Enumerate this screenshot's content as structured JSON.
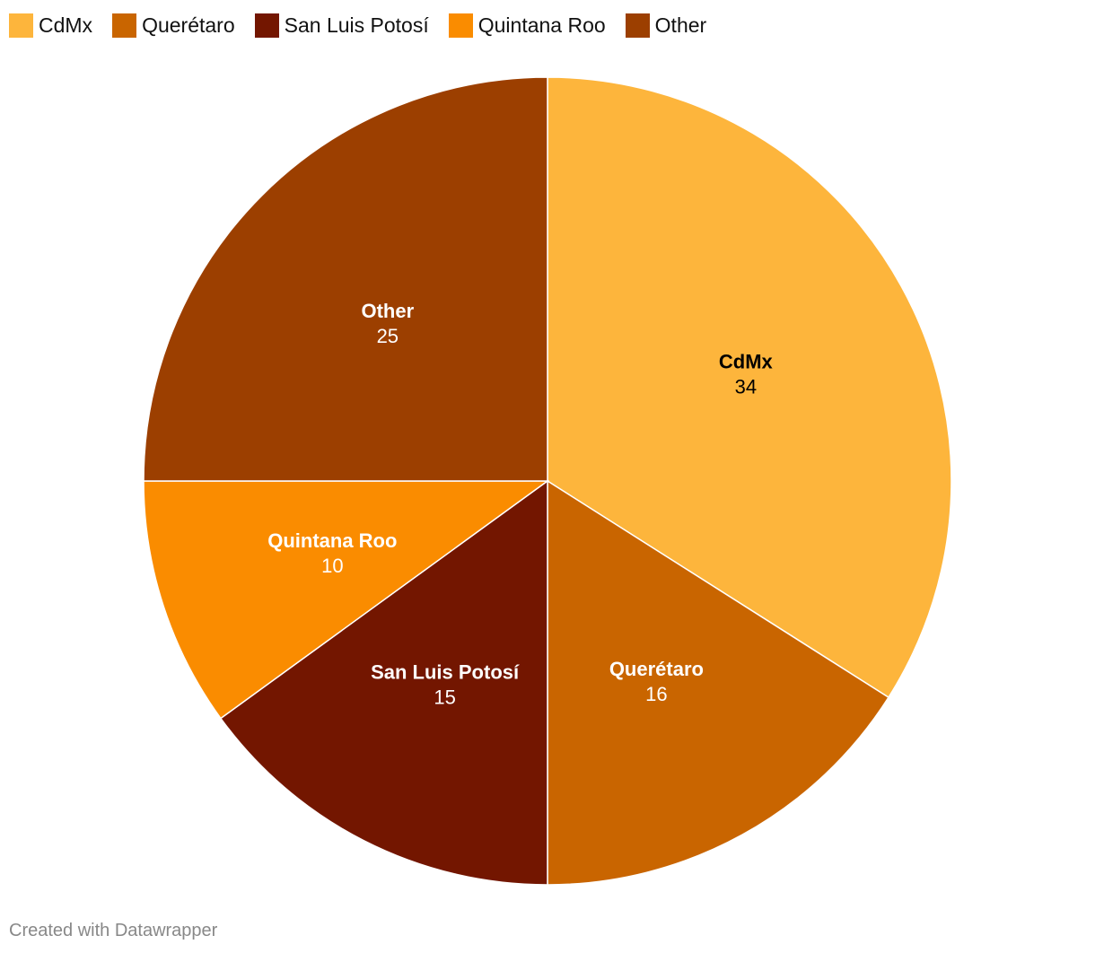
{
  "chart_data": {
    "type": "pie",
    "categories": [
      "CdMx",
      "Querétaro",
      "San Luis Potosí",
      "Quintana Roo",
      "Other"
    ],
    "values": [
      34,
      16,
      15,
      10,
      25
    ],
    "colors": [
      "#fdb53c",
      "#c96500",
      "#731600",
      "#fa8c00",
      "#9c3f00"
    ],
    "label_colors": [
      "#000000",
      "#ffffff",
      "#ffffff",
      "#ffffff",
      "#ffffff"
    ],
    "legend_position": "top-left",
    "start_angle": "12 o'clock",
    "direction": "clockwise"
  },
  "legend": {
    "items": [
      {
        "label": "CdMx",
        "color": "#fdb53c"
      },
      {
        "label": "Querétaro",
        "color": "#c96500"
      },
      {
        "label": "San Luis Potosí",
        "color": "#731600"
      },
      {
        "label": "Quintana Roo",
        "color": "#fa8c00"
      },
      {
        "label": "Other",
        "color": "#9c3f00"
      }
    ]
  },
  "footer": {
    "credit": "Created with Datawrapper"
  }
}
